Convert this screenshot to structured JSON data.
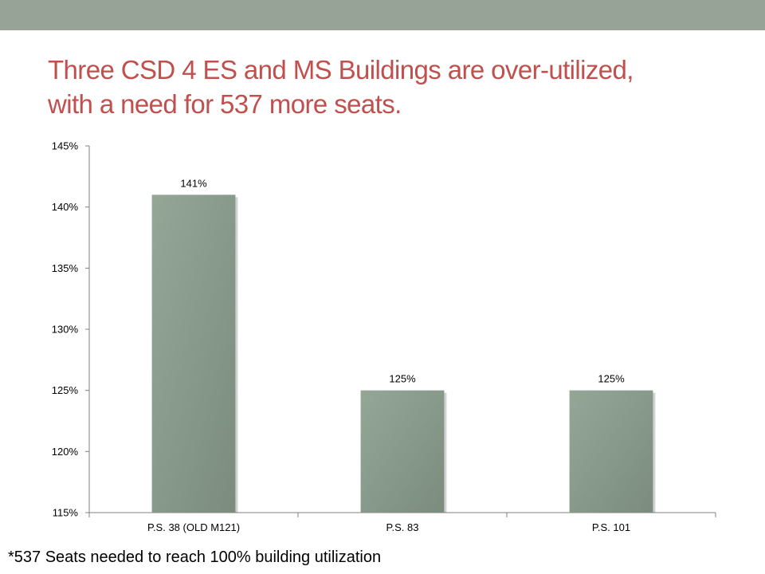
{
  "colors": {
    "top_band": "#97A396",
    "title": "#C0504D",
    "bar_light": "#94A797",
    "bar_dark": "#7B8C7E",
    "axis": "#808080"
  },
  "slide": {
    "title_line1": "Three CSD 4 ES and MS Buildings are over-utilized,",
    "title_line2": "with a need for 537 more seats.",
    "footnote": "*537 Seats needed to reach 100% building utilization"
  },
  "chart_data": {
    "type": "bar",
    "title": "",
    "xlabel": "",
    "ylabel": "",
    "categories": [
      "P.S. 38 (OLD M121)",
      "P.S. 83",
      "P.S. 101"
    ],
    "values": [
      141,
      125,
      125
    ],
    "data_labels": [
      "141%",
      "125%",
      "125%"
    ],
    "ylim": [
      115,
      145
    ],
    "yticks": [
      115,
      120,
      125,
      130,
      135,
      140,
      145
    ],
    "ytick_labels": [
      "115%",
      "120%",
      "125%",
      "130%",
      "135%",
      "140%",
      "145%"
    ],
    "grid": false,
    "legend": "none"
  }
}
